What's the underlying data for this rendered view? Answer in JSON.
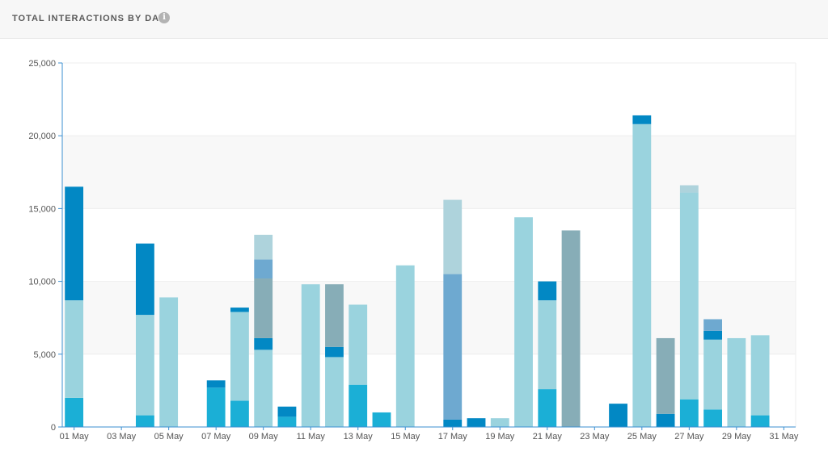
{
  "header": {
    "title": "TOTAL INTERACTIONS BY DAY",
    "info_icon": "info-icon"
  },
  "colors": {
    "s1": "#1bafd6",
    "s2": "#9ad3de",
    "s3": "#0288c4",
    "s4": "#87adb7",
    "s5": "#6ea9d0",
    "s6": "#aed3dc",
    "axis": "#3b8fd1",
    "band": "#f8f8f8"
  },
  "chart_data": {
    "type": "bar",
    "stacked": true,
    "ylim": [
      0,
      25000
    ],
    "yticks": [
      0,
      5000,
      10000,
      15000,
      20000,
      25000
    ],
    "ytick_labels": [
      "0",
      "5,000",
      "10,000",
      "15,000",
      "20,000",
      "25,000"
    ],
    "xtick_labels": [
      "01 May",
      "03 May",
      "05 May",
      "07 May",
      "09 May",
      "11 May",
      "13 May",
      "15 May",
      "17 May",
      "19 May",
      "21 May",
      "23 May",
      "25 May",
      "27 May",
      "29 May",
      "31 May"
    ],
    "categories": [
      "01 May",
      "02 May",
      "03 May",
      "04 May",
      "05 May",
      "06 May",
      "07 May",
      "08 May",
      "09 May",
      "10 May",
      "11 May",
      "12 May",
      "13 May",
      "14 May",
      "15 May",
      "16 May",
      "17 May",
      "18 May",
      "19 May",
      "20 May",
      "21 May",
      "22 May",
      "23 May",
      "24 May",
      "25 May",
      "26 May",
      "27 May",
      "28 May",
      "29 May",
      "30 May",
      "31 May"
    ],
    "series": [
      {
        "color_key": "s1",
        "values": [
          2000,
          0,
          0,
          800,
          0,
          0,
          2700,
          1800,
          0,
          700,
          0,
          0,
          2900,
          1000,
          0,
          0,
          0,
          0,
          0,
          0,
          2600,
          0,
          0,
          0,
          0,
          0,
          1900,
          1200,
          0,
          800,
          0
        ]
      },
      {
        "color_key": "s2",
        "values": [
          6700,
          0,
          0,
          6900,
          8900,
          0,
          0,
          6100,
          5300,
          0,
          9800,
          4800,
          5500,
          0,
          11100,
          0,
          0,
          0,
          600,
          14400,
          6100,
          0,
          0,
          0,
          20800,
          0,
          14200,
          4800,
          6100,
          5500,
          0
        ]
      },
      {
        "color_key": "s3",
        "values": [
          7800,
          0,
          0,
          4900,
          0,
          0,
          500,
          300,
          800,
          700,
          0,
          700,
          0,
          0,
          0,
          0,
          500,
          600,
          0,
          0,
          1300,
          0,
          0,
          1600,
          600,
          900,
          0,
          600,
          0,
          0,
          0
        ]
      },
      {
        "color_key": "s4",
        "values": [
          0,
          0,
          0,
          0,
          0,
          0,
          0,
          0,
          4100,
          0,
          0,
          4300,
          0,
          0,
          0,
          0,
          0,
          0,
          0,
          0,
          0,
          13500,
          0,
          0,
          0,
          5200,
          0,
          0,
          0,
          0,
          0
        ]
      },
      {
        "color_key": "s5",
        "values": [
          0,
          0,
          0,
          0,
          0,
          0,
          0,
          0,
          1300,
          0,
          0,
          0,
          0,
          0,
          0,
          0,
          10000,
          0,
          0,
          0,
          0,
          0,
          0,
          0,
          0,
          0,
          0,
          800,
          0,
          0,
          0
        ]
      },
      {
        "color_key": "s6",
        "values": [
          0,
          0,
          0,
          0,
          0,
          0,
          0,
          0,
          1700,
          0,
          0,
          0,
          0,
          0,
          0,
          0,
          5100,
          0,
          0,
          0,
          0,
          0,
          0,
          0,
          0,
          0,
          500,
          0,
          0,
          0,
          0
        ]
      }
    ]
  }
}
